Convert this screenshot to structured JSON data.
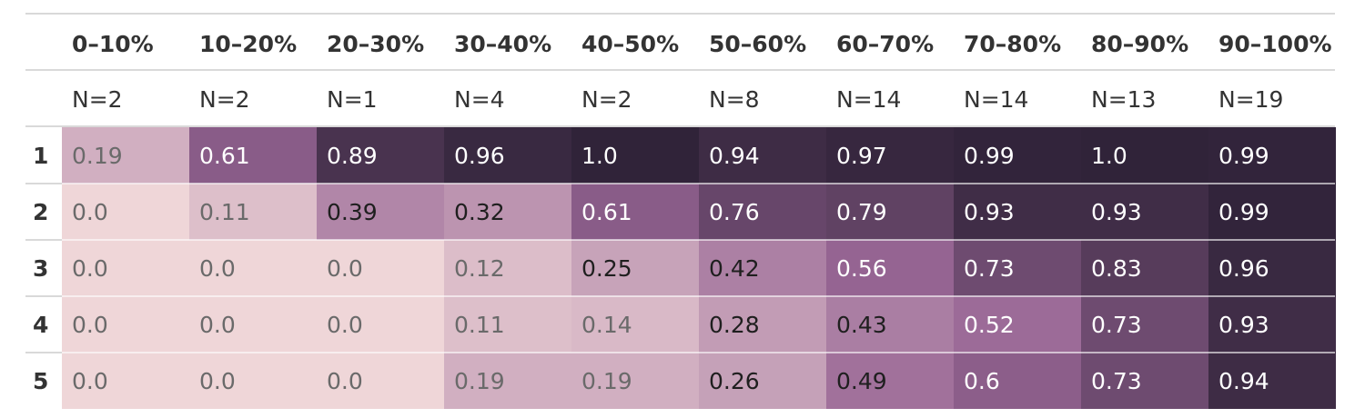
{
  "chart_data": {
    "type": "heatmap",
    "columns": [
      "0–10%",
      "10–20%",
      "20–30%",
      "30–40%",
      "40–50%",
      "50–60%",
      "60–70%",
      "70–80%",
      "80–90%",
      "90–100%"
    ],
    "column_counts": [
      "N=2",
      "N=2",
      "N=1",
      "N=4",
      "N=2",
      "N=8",
      "N=14",
      "N=14",
      "N=13",
      "N=19"
    ],
    "rows": [
      "1",
      "2",
      "3",
      "4",
      "5"
    ],
    "values": [
      [
        0.19,
        0.61,
        0.89,
        0.96,
        1.0,
        0.94,
        0.97,
        0.99,
        1.0,
        0.99
      ],
      [
        0.0,
        0.11,
        0.39,
        0.32,
        0.61,
        0.76,
        0.79,
        0.93,
        0.93,
        0.99
      ],
      [
        0.0,
        0.0,
        0.0,
        0.12,
        0.25,
        0.42,
        0.56,
        0.73,
        0.83,
        0.96
      ],
      [
        0.0,
        0.0,
        0.0,
        0.11,
        0.14,
        0.28,
        0.43,
        0.52,
        0.73,
        0.93
      ],
      [
        0.0,
        0.0,
        0.0,
        0.19,
        0.19,
        0.26,
        0.49,
        0.6,
        0.73,
        0.94
      ]
    ],
    "labels": [
      [
        "0.19",
        "0.61",
        "0.89",
        "0.96",
        "1.0",
        "0.94",
        "0.97",
        "0.99",
        "1.0",
        "0.99"
      ],
      [
        "0.0",
        "0.11",
        "0.39",
        "0.32",
        "0.61",
        "0.76",
        "0.79",
        "0.93",
        "0.93",
        "0.99"
      ],
      [
        "0.0",
        "0.0",
        "0.0",
        "0.12",
        "0.25",
        "0.42",
        "0.56",
        "0.73",
        "0.83",
        "0.96"
      ],
      [
        "0.0",
        "0.0",
        "0.0",
        "0.11",
        "0.14",
        "0.28",
        "0.43",
        "0.52",
        "0.73",
        "0.93"
      ],
      [
        "0.0",
        "0.0",
        "0.0",
        "0.19",
        "0.19",
        "0.26",
        "0.49",
        "0.6",
        "0.73",
        "0.94"
      ]
    ],
    "range": [
      0,
      1
    ],
    "colors": {
      "low": "#efd6d8",
      "mid": "#976594",
      "high": "#302339",
      "text_dark": "#1f1f1f",
      "text_light": "#ffffff",
      "text_muted": "#6a6a6a",
      "rule": "#d9d9d9",
      "cell_divider": "#ffffff"
    },
    "legend": "none",
    "grid": false
  }
}
